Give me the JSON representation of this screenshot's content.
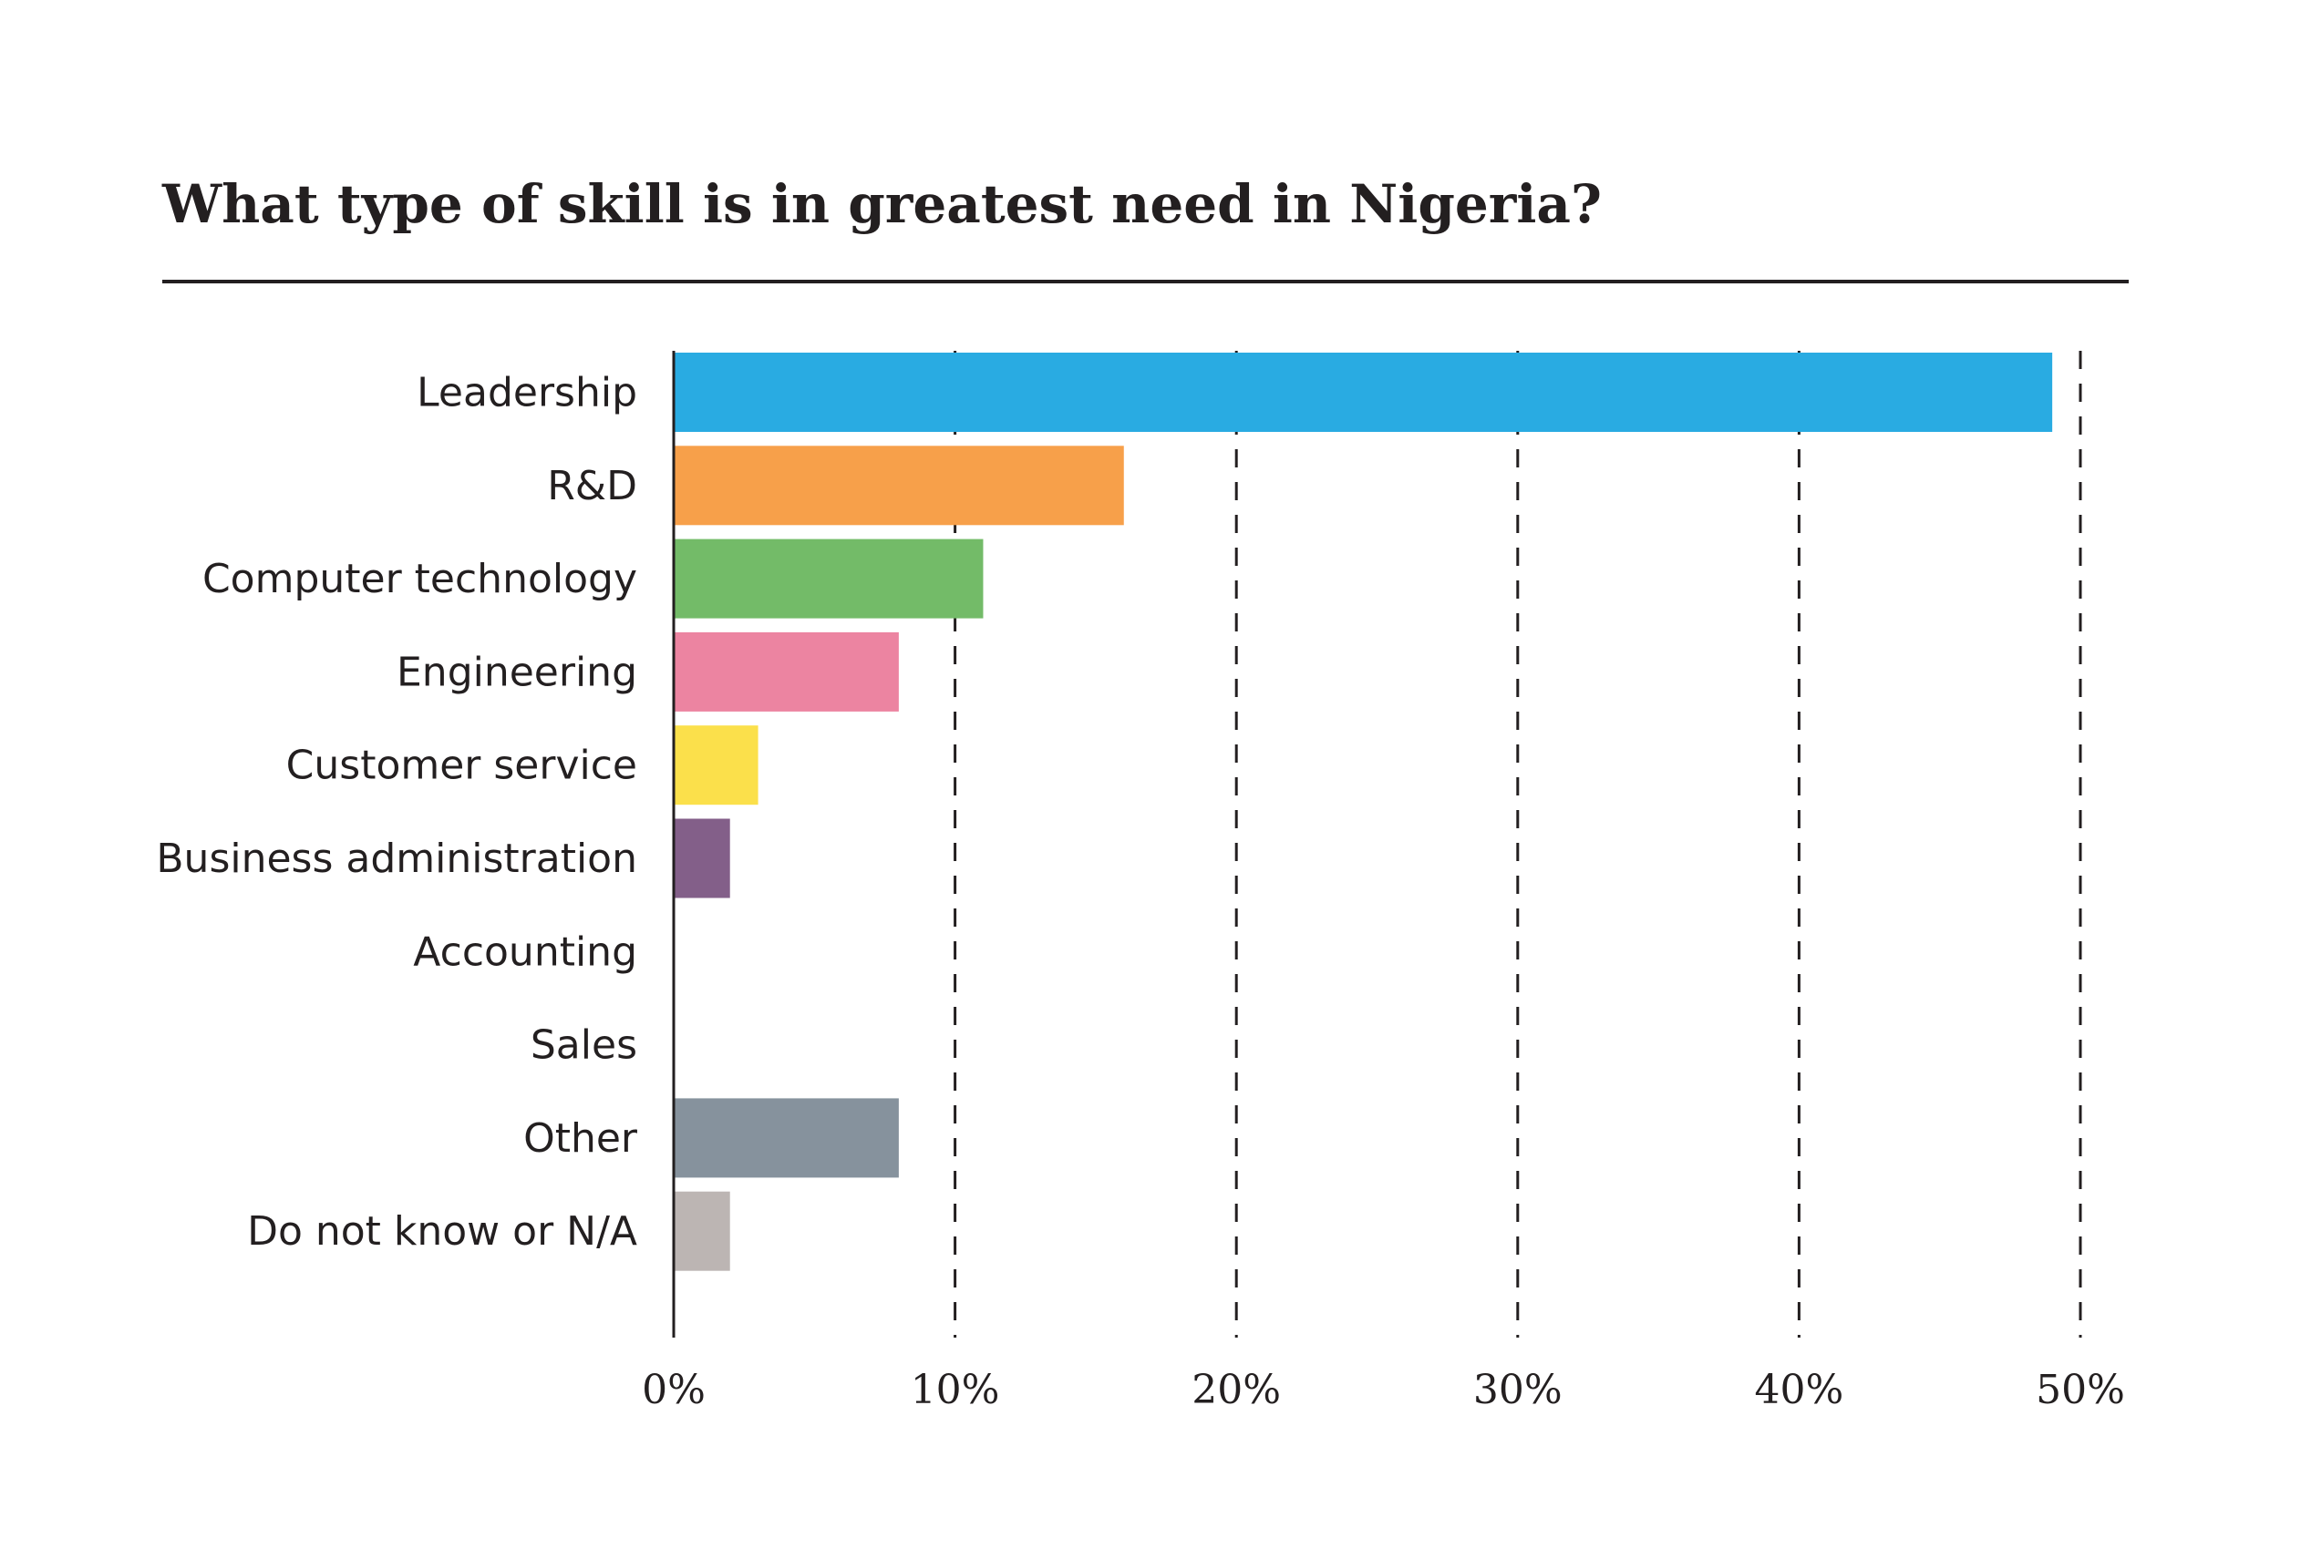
{
  "chart_data": {
    "type": "bar",
    "orientation": "horizontal",
    "title": "What type of skill is in greatest need in Nigeria?",
    "xlabel": "",
    "ylabel": "",
    "xlim": [
      0,
      50
    ],
    "grid": true,
    "categories": [
      "Leadership",
      "R&D",
      "Computer technology",
      "Engineering",
      "Customer service",
      "Business administration",
      "Accounting",
      "Sales",
      "Other",
      "Do not know or N/A"
    ],
    "values": [
      49,
      16,
      11,
      8,
      3,
      2,
      0,
      0,
      8,
      2
    ],
    "colors": [
      "#29abe2",
      "#f7a04a",
      "#73bb68",
      "#ec84a1",
      "#fbe04b",
      "#835f89",
      "#cccccc",
      "#cccccc",
      "#86929d",
      "#bcb5b3"
    ],
    "ticks": [
      0,
      10,
      20,
      30,
      40,
      50
    ],
    "tick_labels": [
      "0%",
      "10%",
      "20%",
      "30%",
      "40%",
      "50%"
    ]
  }
}
